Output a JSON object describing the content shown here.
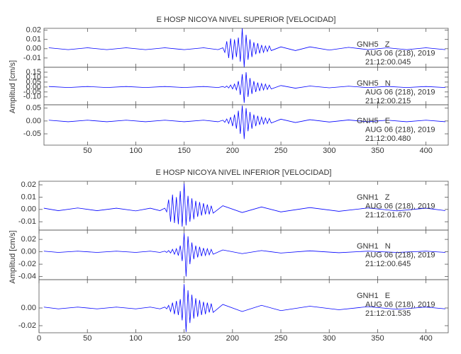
{
  "chart_data": [
    {
      "type": "line",
      "title": "E HOSP NICOYA NIVEL SUPERIOR [VELOCIDAD]",
      "ylabel": "Amplitud [cm/s]",
      "xlim": [
        5,
        423
      ],
      "xticks": [
        50,
        100,
        150,
        200,
        250,
        300,
        350,
        400
      ],
      "x": [
        10,
        30,
        50,
        70,
        90,
        110,
        130,
        150,
        170,
        185,
        190,
        192,
        194,
        196,
        198,
        200,
        202,
        204,
        206,
        208,
        210,
        212,
        214,
        216,
        218,
        220,
        222,
        224,
        226,
        228,
        230,
        232,
        234,
        236,
        238,
        240,
        250,
        265,
        280,
        300,
        320,
        340,
        360,
        380,
        400,
        420
      ],
      "panels": [
        {
          "ylim": [
            -0.02,
            0.022
          ],
          "yticks": [
            {
              "value": 0.02,
              "label": "0.02"
            },
            {
              "value": 0.01,
              "label": "0.01"
            },
            {
              "value": 0,
              "label": "0.00"
            },
            {
              "value": -0.01,
              "label": "-0.01"
            }
          ],
          "station": "GNH5   Z",
          "date": "AUG 06 (218), 2019",
          "time": "21:12:00.045",
          "series": [
            {
              "color": "#0000ff",
              "values": [
                0.001,
                -0.001,
                0.001,
                -0.001,
                0.001,
                -0.001,
                0.001,
                -0.001,
                0.001,
                -0.001,
                0.001,
                -0.004,
                0.008,
                -0.01,
                0.011,
                -0.012,
                0.01,
                -0.009,
                0.012,
                -0.014,
                0.022,
                -0.02,
                0.015,
                -0.012,
                0.01,
                -0.009,
                0.007,
                -0.006,
                0.006,
                -0.005,
                0.004,
                -0.004,
                0.003,
                -0.003,
                0.003,
                -0.002,
                0.002,
                -0.002,
                0.002,
                -0.0015,
                0.0015,
                -0.001,
                0.001,
                -0.001,
                0.001,
                -0.001
              ]
            }
          ]
        },
        {
          "ylim": [
            -0.18,
            0.2
          ],
          "yticks": [
            {
              "value": 0.15,
              "label": "0.15"
            },
            {
              "value": 0.1,
              "label": "0.10"
            },
            {
              "value": 0.05,
              "label": "0.05"
            },
            {
              "value": 0,
              "label": "0.00"
            },
            {
              "value": -0.05,
              "label": "-0.05"
            },
            {
              "value": -0.1,
              "label": "-0.10"
            }
          ],
          "station": "GNH5   N",
          "date": "AUG 06 (218), 2019",
          "time": "21:12:00.215",
          "series": [
            {
              "color": "#0000ff",
              "values": [
                0.005,
                -0.005,
                0.005,
                -0.005,
                0.005,
                -0.005,
                0.005,
                -0.005,
                0.005,
                -0.005,
                0.005,
                -0.005,
                0.01,
                -0.01,
                0.02,
                -0.02,
                0.03,
                -0.03,
                0.06,
                -0.08,
                0.13,
                -0.16,
                0.15,
                -0.1,
                0.09,
                -0.07,
                0.06,
                -0.05,
                0.045,
                -0.04,
                0.035,
                -0.03,
                0.03,
                -0.025,
                0.02,
                -0.02,
                0.015,
                -0.012,
                0.01,
                -0.008,
                0.008,
                -0.006,
                0.006,
                -0.005,
                0.005,
                -0.005
              ]
            }
          ]
        },
        {
          "ylim": [
            -0.094,
            0.063
          ],
          "yticks": [
            {
              "value": 0.05,
              "label": "0.05"
            },
            {
              "value": 0,
              "label": "0.00"
            },
            {
              "value": -0.05,
              "label": "-0.05"
            }
          ],
          "station": "GNH5   E",
          "date": "AUG 06 (218), 2019",
          "time": "21:12:00.480",
          "series": [
            {
              "color": "#0000ff",
              "values": [
                0.003,
                -0.003,
                0.003,
                -0.003,
                0.003,
                -0.003,
                0.003,
                -0.003,
                0.003,
                -0.003,
                0.003,
                -0.005,
                0.008,
                -0.01,
                0.015,
                -0.02,
                0.025,
                -0.03,
                0.04,
                -0.05,
                0.06,
                -0.07,
                0.05,
                -0.04,
                0.035,
                -0.03,
                0.025,
                -0.02,
                0.02,
                -0.015,
                0.015,
                -0.012,
                0.012,
                -0.01,
                0.01,
                -0.008,
                0.007,
                -0.006,
                0.005,
                -0.004,
                0.004,
                -0.003,
                0.003,
                -0.003,
                0.003,
                -0.003
              ]
            }
          ]
        }
      ]
    },
    {
      "type": "line",
      "title": "E HOSP NICOYA NIVEL INFERIOR [VELOCIDAD]",
      "ylabel": "Amplitud [cm/s]",
      "xlim": [
        0,
        423
      ],
      "xticks": [
        0,
        50,
        100,
        150,
        200,
        250,
        300,
        350,
        400
      ],
      "x": [
        5,
        20,
        40,
        60,
        80,
        100,
        115,
        125,
        130,
        132,
        134,
        136,
        138,
        140,
        142,
        144,
        146,
        148,
        150,
        152,
        154,
        156,
        158,
        160,
        162,
        164,
        166,
        168,
        170,
        172,
        174,
        176,
        178,
        180,
        190,
        210,
        230,
        250,
        280,
        310,
        340,
        370,
        400,
        420
      ],
      "panels": [
        {
          "ylim": [
            -0.0168,
            0.0229
          ],
          "yticks": [
            {
              "value": 0.02,
              "label": "0.02"
            },
            {
              "value": 0.01,
              "label": "0.01"
            },
            {
              "value": 0,
              "label": "0.00"
            },
            {
              "value": -0.01,
              "label": "-0.01"
            }
          ],
          "station": "GNH1   Z",
          "date": "AUG 06 (218), 2019",
          "time": "21:12:01.670",
          "series": [
            {
              "color": "#0000ff",
              "values": [
                0.001,
                -0.001,
                0.0012,
                -0.001,
                0.001,
                -0.0012,
                0.001,
                -0.001,
                0.001,
                -0.002,
                0.008,
                -0.01,
                0.012,
                -0.011,
                0.01,
                -0.012,
                0.015,
                -0.014,
                0.021,
                -0.013,
                0.011,
                -0.01,
                0.009,
                -0.008,
                0.007,
                -0.006,
                0.006,
                -0.005,
                0.005,
                -0.004,
                0.004,
                -0.004,
                0.003,
                -0.003,
                0.003,
                -0.0025,
                0.002,
                -0.002,
                0.0015,
                -0.0015,
                0.0012,
                -0.0012,
                0.001,
                -0.001
              ]
            }
          ]
        },
        {
          "ylim": [
            -0.045,
            0.035
          ],
          "yticks": [
            {
              "value": 0.02,
              "label": "0.02"
            },
            {
              "value": 0,
              "label": "0.00"
            },
            {
              "value": -0.02,
              "label": "-0.02"
            },
            {
              "value": -0.04,
              "label": "-0.04"
            }
          ],
          "station": "GNH1   N",
          "date": "AUG 06 (218), 2019",
          "time": "21:12:00.645",
          "series": [
            {
              "color": "#0000ff",
              "values": [
                0.001,
                -0.001,
                0.001,
                -0.001,
                0.001,
                -0.001,
                0.001,
                -0.001,
                0.001,
                -0.001,
                0.002,
                -0.002,
                0.004,
                -0.004,
                0.005,
                -0.006,
                0.01,
                -0.015,
                0.03,
                -0.04,
                0.025,
                -0.02,
                0.015,
                -0.012,
                0.01,
                -0.009,
                0.008,
                -0.007,
                0.006,
                -0.006,
                0.005,
                -0.005,
                0.004,
                -0.004,
                0.003,
                -0.003,
                0.002,
                -0.002,
                0.0015,
                -0.0015,
                0.001,
                -0.001,
                0.001,
                -0.001
              ]
            }
          ]
        },
        {
          "ylim": [
            -0.028,
            0.032
          ],
          "yticks": [
            {
              "value": 0,
              "label": "0.00"
            },
            {
              "value": -0.02,
              "label": "-0.02"
            }
          ],
          "station": "GNH1   E",
          "date": "AUG 06 (218), 2019",
          "time": "21:12:01.535",
          "series": [
            {
              "color": "#0000ff",
              "values": [
                0.001,
                -0.001,
                0.001,
                -0.001,
                0.001,
                -0.001,
                0.001,
                -0.001,
                0.001,
                -0.001,
                0.003,
                -0.004,
                0.006,
                -0.007,
                0.008,
                -0.008,
                0.01,
                -0.014,
                0.027,
                -0.027,
                0.02,
                -0.017,
                0.015,
                -0.012,
                0.011,
                -0.01,
                0.009,
                -0.008,
                0.007,
                -0.007,
                0.006,
                -0.005,
                0.005,
                -0.005,
                0.004,
                -0.004,
                0.003,
                -0.003,
                0.002,
                -0.002,
                0.0015,
                -0.0015,
                0.001,
                -0.001
              ]
            }
          ]
        }
      ]
    }
  ]
}
